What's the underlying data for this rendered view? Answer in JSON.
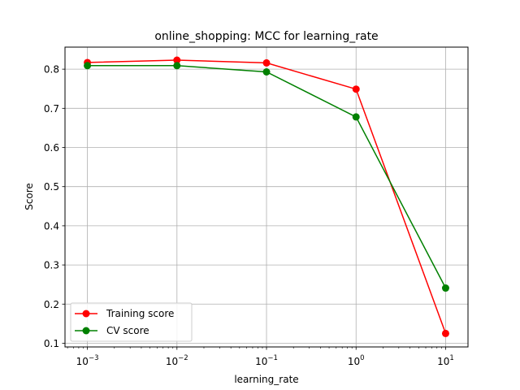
{
  "chart_data": {
    "type": "line",
    "title": "online_shopping: MCC for learning_rate",
    "xlabel": "learning_rate",
    "ylabel": "Score",
    "xscale": "log",
    "x": [
      0.001,
      0.01,
      0.1,
      1,
      10
    ],
    "x_tick_labels": [
      {
        "base": "10",
        "exp": "−3"
      },
      {
        "base": "10",
        "exp": "−2"
      },
      {
        "base": "10",
        "exp": "−1"
      },
      {
        "base": "10",
        "exp": "0"
      },
      {
        "base": "10",
        "exp": "1"
      }
    ],
    "xlim": [
      0.000562,
      17.78
    ],
    "ylim": [
      0.0906,
      0.8563
    ],
    "y_ticks": [
      "0.1",
      "0.2",
      "0.3",
      "0.4",
      "0.5",
      "0.6",
      "0.7",
      "0.8"
    ],
    "grid": true,
    "legend_position": "lower-left",
    "series": [
      {
        "name": "Training score",
        "color": "#ff0000",
        "values": [
          0.817,
          0.823,
          0.816,
          0.749,
          0.125
        ]
      },
      {
        "name": "CV score",
        "color": "#008000",
        "values": [
          0.809,
          0.809,
          0.793,
          0.678,
          0.241
        ]
      }
    ]
  }
}
